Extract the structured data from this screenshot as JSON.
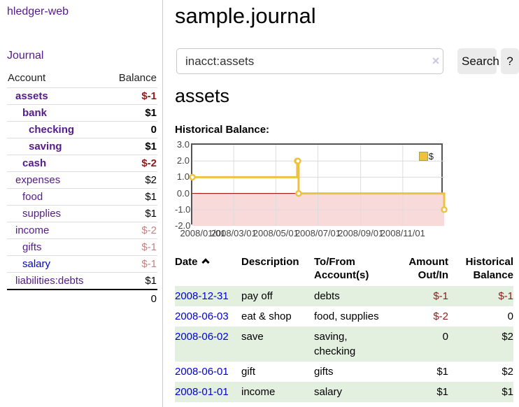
{
  "app": {
    "title": "hledger-web"
  },
  "nav": {
    "journal": "Journal"
  },
  "sidebar": {
    "headers": [
      "Account",
      "Balance"
    ],
    "rows": [
      {
        "account": "assets",
        "indent": 1,
        "bold": true,
        "balance": "$-1",
        "balance_style": "neg-strong",
        "link_color": "purple"
      },
      {
        "account": "bank",
        "indent": 2,
        "bold": true,
        "balance": "$1",
        "balance_style": "pos",
        "link_color": "purple"
      },
      {
        "account": "checking",
        "indent": 3,
        "bold": true,
        "balance": "0",
        "balance_style": "pos",
        "link_color": "purple"
      },
      {
        "account": "saving",
        "indent": 3,
        "bold": true,
        "balance": "$1",
        "balance_style": "pos",
        "link_color": "purple"
      },
      {
        "account": "cash",
        "indent": 2,
        "bold": true,
        "balance": "$-2",
        "balance_style": "neg-strong",
        "link_color": "purple"
      },
      {
        "account": "expenses",
        "indent": 1,
        "bold": false,
        "balance": "$2",
        "balance_style": "pos",
        "link_color": "purple"
      },
      {
        "account": "food",
        "indent": 2,
        "bold": false,
        "balance": "$1",
        "balance_style": "pos",
        "link_color": "purple"
      },
      {
        "account": "supplies",
        "indent": 2,
        "bold": false,
        "balance": "$1",
        "balance_style": "pos",
        "link_color": "purple"
      },
      {
        "account": "income",
        "indent": 1,
        "bold": false,
        "balance": "$-2",
        "balance_style": "neg-faint",
        "link_color": "purple"
      },
      {
        "account": "gifts",
        "indent": 2,
        "bold": false,
        "balance": "$-1",
        "balance_style": "neg-faint",
        "link_color": "purple"
      },
      {
        "account": "salary",
        "indent": 2,
        "bold": false,
        "balance": "$-1",
        "balance_style": "neg-faint",
        "link_color": "blue"
      },
      {
        "account": "liabilities:debts",
        "indent": 1,
        "bold": false,
        "balance": "$1",
        "balance_style": "pos",
        "link_color": "purple"
      }
    ],
    "total": "0"
  },
  "header": {
    "title": "sample.journal"
  },
  "search": {
    "value": "inacct:assets",
    "clear_icon": "×",
    "button_label": "Search",
    "help_label": "?"
  },
  "main": {
    "heading": "assets",
    "chart_label": "Historical Balance:"
  },
  "chart_data": {
    "type": "line",
    "step": true,
    "x_start": "2008-01-01",
    "x_end": "2008-12-31",
    "ylim": [
      -2,
      3
    ],
    "yticks": [
      "3.0",
      "2.0",
      "1.0",
      "0.0",
      "-1.0",
      "-2.0"
    ],
    "ytick_values": [
      3,
      2,
      1,
      0,
      -1,
      -2
    ],
    "xticks": [
      "2008/01/01",
      "2008/03/01",
      "2008/05/01",
      "2008/07/01",
      "2008/09/01",
      "2008/11/01"
    ],
    "xtick_dates": [
      "2008-01-01",
      "2008-03-01",
      "2008-05-01",
      "2008-07-01",
      "2008-09-01",
      "2008-11-01"
    ],
    "series": [
      {
        "name": "$",
        "color": "#EDC240",
        "points": [
          [
            "2008-01-01",
            1
          ],
          [
            "2008-06-01",
            2
          ],
          [
            "2008-06-02",
            2
          ],
          [
            "2008-06-03",
            0
          ],
          [
            "2008-12-31",
            -1
          ]
        ]
      }
    ],
    "legend_position": "top-right",
    "grid": true,
    "negative_region_color": "#F9DADA",
    "zero_line_color": "#990000"
  },
  "register": {
    "headers": [
      "Date",
      "Description",
      "To/From\nAccount(s)",
      "Amount\nOut/In",
      "Historical\nBalance"
    ],
    "rows": [
      {
        "date": "2008-12-31",
        "description": "pay off",
        "to_from": "debts",
        "amount": "$-1",
        "amount_neg": true,
        "balance": "$-1",
        "balance_neg": true,
        "shaded": true
      },
      {
        "date": "2008-06-03",
        "description": "eat & shop",
        "to_from": "food, supplies",
        "amount": "$-2",
        "amount_neg": true,
        "balance": "0",
        "balance_neg": false,
        "shaded": false
      },
      {
        "date": "2008-06-02",
        "description": "save",
        "to_from": "saving,\nchecking",
        "amount": "0",
        "amount_neg": false,
        "balance": "$2",
        "balance_neg": false,
        "shaded": true
      },
      {
        "date": "2008-06-01",
        "description": "gift",
        "to_from": "gifts",
        "amount": "$1",
        "amount_neg": false,
        "balance": "$2",
        "balance_neg": false,
        "shaded": false
      },
      {
        "date": "2008-01-01",
        "description": "income",
        "to_from": "salary",
        "amount": "$1",
        "amount_neg": false,
        "balance": "$1",
        "balance_neg": false,
        "shaded": true
      }
    ]
  }
}
